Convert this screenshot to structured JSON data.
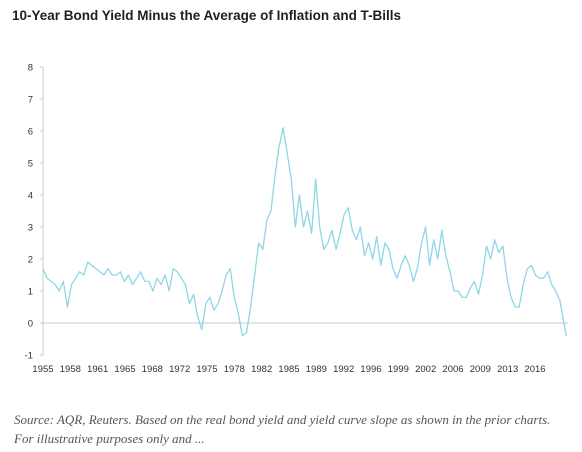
{
  "title": "10-Year Bond Yield Minus the Average of Inflation and T-Bills",
  "source": "Source: AQR, Reuters. Based on the real bond yield and yield curve slope as shown in the prior charts. For illustrative purposes only and ...",
  "colors": {
    "line": "#8fd6e6",
    "axis": "#bdbdbd",
    "text": "#333333"
  },
  "chart_data": {
    "type": "line",
    "title": "10-Year Bond Yield Minus the Average of Inflation and T-Bills",
    "xlabel": "",
    "ylabel": "",
    "ylim": [
      -1,
      8
    ],
    "xlim": [
      1955,
      2019.5
    ],
    "grid": false,
    "y_ticks": [
      "8",
      "7",
      "6",
      "5",
      "4",
      "3",
      "2",
      "1",
      "0",
      "-1"
    ],
    "x_ticks": [
      "1955",
      "1958",
      "1961",
      "1965",
      "1968",
      "1972",
      "1975",
      "1978",
      "1982",
      "1985",
      "1989",
      "1992",
      "1996",
      "1999",
      "2002",
      "2006",
      "2009",
      "2013",
      "2016"
    ],
    "series": [
      {
        "x": [
          1955.0,
          1955.5,
          1956.0,
          1956.5,
          1957.0,
          1957.5,
          1958.0,
          1958.5,
          1959.0,
          1959.5,
          1960.0,
          1960.5,
          1961.0,
          1961.5,
          1962.0,
          1962.5,
          1963.0,
          1963.5,
          1964.0,
          1964.5,
          1965.0,
          1965.5,
          1966.0,
          1966.5,
          1967.0,
          1967.5,
          1968.0,
          1968.5,
          1969.0,
          1969.5,
          1970.0,
          1970.5,
          1971.0,
          1971.5,
          1972.0,
          1972.5,
          1973.0,
          1973.5,
          1974.0,
          1974.5,
          1975.0,
          1975.5,
          1976.0,
          1976.5,
          1977.0,
          1977.5,
          1978.0,
          1978.5,
          1979.0,
          1979.5,
          1980.0,
          1980.5,
          1981.0,
          1981.5,
          1982.0,
          1982.5,
          1983.0,
          1983.5,
          1984.0,
          1984.5,
          1985.0,
          1985.5,
          1986.0,
          1986.5,
          1987.0,
          1987.5,
          1988.0,
          1988.5,
          1989.0,
          1989.5,
          1990.0,
          1990.5,
          1991.0,
          1991.5,
          1992.0,
          1992.5,
          1993.0,
          1993.5,
          1994.0,
          1994.5,
          1995.0,
          1995.5,
          1996.0,
          1996.5,
          1997.0,
          1997.5,
          1998.0,
          1998.5,
          1999.0,
          1999.5,
          2000.0,
          2000.5,
          2001.0,
          2001.5,
          2002.0,
          2002.5,
          2003.0,
          2003.5,
          2004.0,
          2004.5,
          2005.0,
          2005.5,
          2006.0,
          2006.5,
          2007.0,
          2007.5,
          2008.0,
          2008.5,
          2009.0,
          2009.5,
          2010.0,
          2010.5,
          2011.0,
          2011.5,
          2012.0,
          2012.5,
          2013.0,
          2013.5,
          2014.0,
          2014.5,
          2015.0,
          2015.5,
          2016.0,
          2016.5,
          2017.0,
          2017.5,
          2018.0,
          2018.5,
          2019.0,
          2019.3
        ],
        "values": [
          1.7,
          1.4,
          1.3,
          1.2,
          1.0,
          1.3,
          0.5,
          1.2,
          1.4,
          1.6,
          1.5,
          1.9,
          1.8,
          1.7,
          1.6,
          1.5,
          1.7,
          1.5,
          1.5,
          1.6,
          1.3,
          1.5,
          1.2,
          1.4,
          1.6,
          1.3,
          1.3,
          1.0,
          1.4,
          1.2,
          1.5,
          1.0,
          1.7,
          1.6,
          1.4,
          1.2,
          0.6,
          0.9,
          0.2,
          -0.2,
          0.6,
          0.8,
          0.4,
          0.6,
          1.0,
          1.5,
          1.7,
          0.8,
          0.3,
          -0.4,
          -0.3,
          0.5,
          1.5,
          2.5,
          2.3,
          3.2,
          3.5,
          4.6,
          5.5,
          6.1,
          5.3,
          4.5,
          3.0,
          4.0,
          3.0,
          3.5,
          2.8,
          4.5,
          3.0,
          2.3,
          2.5,
          2.9,
          2.3,
          2.8,
          3.4,
          3.6,
          2.9,
          2.6,
          3.0,
          2.1,
          2.5,
          2.0,
          2.7,
          1.8,
          2.5,
          2.3,
          1.7,
          1.4,
          1.8,
          2.1,
          1.8,
          1.3,
          1.7,
          2.5,
          3.0,
          1.8,
          2.6,
          2.0,
          2.9,
          2.1,
          1.6,
          1.0,
          1.0,
          0.8,
          0.8,
          1.1,
          1.3,
          0.9,
          1.5,
          2.4,
          2.0,
          2.6,
          2.2,
          2.4,
          1.4,
          0.8,
          0.5,
          0.5,
          1.2,
          1.7,
          1.8,
          1.5,
          1.4,
          1.4,
          1.6,
          1.2,
          1.0,
          0.7,
          0.0,
          -0.4
        ]
      }
    ]
  }
}
